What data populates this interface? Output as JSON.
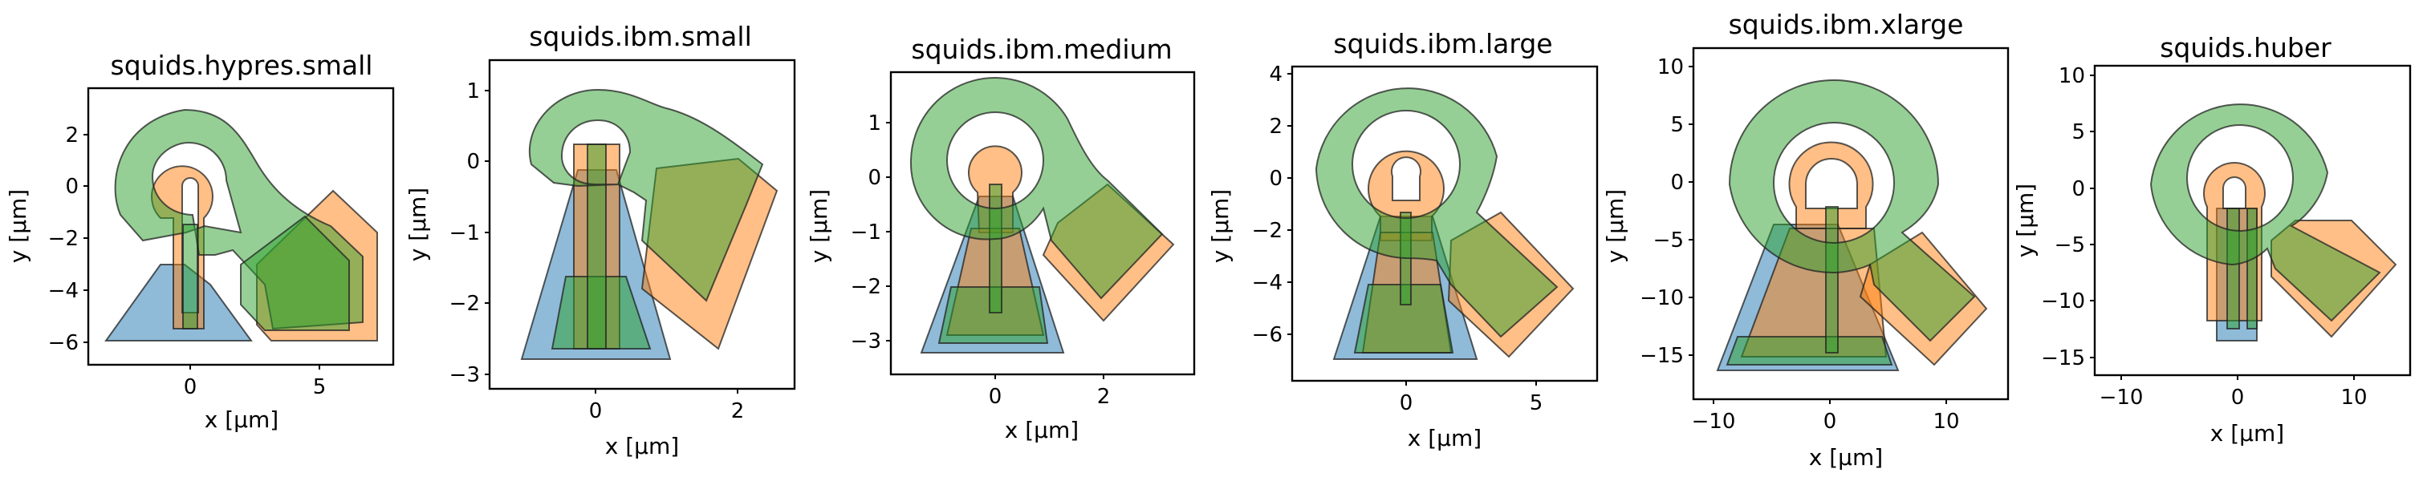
{
  "figure": {
    "axis_label_x": "x [µm]",
    "axis_label_y": "y [µm]",
    "colors": {
      "layer_blue": "#1f77b4",
      "layer_orange": "#ff7f0e",
      "layer_green": "#2ca02c"
    }
  },
  "panels": [
    {
      "title": "squids.hypres.small",
      "xlim": [
        -4.2,
        7.8
      ],
      "ylim": [
        -6.8,
        3.2
      ],
      "xticks": [
        0,
        5
      ],
      "yticks": [
        2,
        0,
        -2,
        -4,
        -6
      ],
      "xtick_labels": [
        "0",
        "5"
      ],
      "ytick_labels": [
        "2",
        "0",
        "−2",
        "−4",
        "−6"
      ],
      "layers": {
        "blue": "bottom_layer",
        "orange": "middle_layer",
        "green": "top_layer"
      }
    },
    {
      "title": "squids.ibm.small",
      "xlim": [
        -1.5,
        2.8
      ],
      "ylim": [
        -3.25,
        1.35
      ],
      "xticks": [
        0,
        2
      ],
      "yticks": [
        1,
        0,
        -1,
        -2,
        -3
      ],
      "xtick_labels": [
        "0",
        "2"
      ],
      "ytick_labels": [
        "1",
        "0",
        "−1",
        "−2",
        "−3"
      ],
      "layers": {
        "blue": "bottom_layer",
        "orange": "middle_layer",
        "green": "top_layer"
      }
    },
    {
      "title": "squids.ibm.medium",
      "xlim": [
        -2.0,
        3.8
      ],
      "ylim": [
        -3.6,
        2.0
      ],
      "xticks": [
        0,
        2
      ],
      "yticks": [
        1,
        0,
        -1,
        -2,
        -3
      ],
      "xtick_labels": [
        "0",
        "2"
      ],
      "ytick_labels": [
        "1",
        "0",
        "−1",
        "−2",
        "−3"
      ],
      "layers": {
        "blue": "bottom_layer",
        "orange": "middle_layer",
        "green": "top_layer"
      }
    },
    {
      "title": "squids.ibm.large",
      "xlim": [
        -4.5,
        7.0
      ],
      "ylim": [
        -7.8,
        4.5
      ],
      "xticks": [
        0,
        5
      ],
      "yticks": [
        4,
        2,
        0,
        -2,
        -4,
        -6
      ],
      "xtick_labels": [
        "0",
        "5"
      ],
      "ytick_labels": [
        "4",
        "2",
        "0",
        "−2",
        "−4",
        "−6"
      ],
      "layers": {
        "blue": "bottom_layer",
        "orange": "middle_layer",
        "green": "top_layer"
      }
    },
    {
      "title": "squids.ibm.xlarge",
      "xlim": [
        -12.0,
        15.0
      ],
      "ylim": [
        -18.5,
        12.0
      ],
      "xticks": [
        -10,
        0,
        10
      ],
      "yticks": [
        10,
        5,
        0,
        -5,
        -10,
        -15
      ],
      "xtick_labels": [
        "−10",
        "0",
        "10"
      ],
      "ytick_labels": [
        "10",
        "5",
        "0",
        "−5",
        "−10",
        "−15"
      ],
      "layers": {
        "blue": "bottom_layer",
        "orange": "middle_layer",
        "green": "top_layer"
      }
    },
    {
      "title": "squids.huber",
      "xlim": [
        -11.0,
        15.5
      ],
      "ylim": [
        -16.2,
        11.0
      ],
      "xticks": [
        -10,
        0,
        10
      ],
      "yticks": [
        10,
        5,
        0,
        -5,
        -10,
        -15
      ],
      "xtick_labels": [
        "−10",
        "0",
        "10"
      ],
      "ytick_labels": [
        "10",
        "5",
        "0",
        "−5",
        "−10",
        "−15"
      ],
      "layers": {
        "blue": "bottom_layer",
        "orange": "middle_layer",
        "green": "top_layer"
      }
    }
  ]
}
